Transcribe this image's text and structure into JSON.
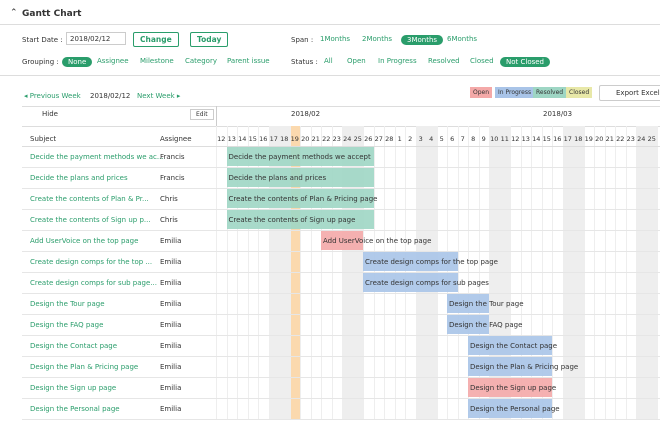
{
  "header": {
    "title": "Gantt Chart"
  },
  "filters": {
    "start_date_label": "Start Date :",
    "start_date": "2018/02/12",
    "change": "Change",
    "today": "Today",
    "span_label": "Span :",
    "span_options": [
      "1Months",
      "2Months",
      "3Months",
      "6Months"
    ],
    "grouping_label": "Grouping :",
    "grouping_options": [
      "None",
      "Assignee",
      "Milestone",
      "Category",
      "Parent issue"
    ],
    "status_label": "Status :",
    "status_options": [
      "All",
      "Open",
      "In Progress",
      "Resolved",
      "Closed",
      "Not Closed"
    ]
  },
  "nav": {
    "previous": "◂ Previous Week",
    "current": "2018/02/12",
    "next": "Next Week ▸"
  },
  "legend": [
    "Open",
    "In Progress",
    "Resolved",
    "Closed"
  ],
  "export": "Export Excel",
  "table": {
    "hide": "Hide",
    "edit": "Edit",
    "subject": "Subject",
    "assignee": "Assignee",
    "months": [
      "2018/02",
      "2018/03"
    ],
    "days": [
      "12",
      "13",
      "14",
      "15",
      "16",
      "17",
      "18",
      "19",
      "20",
      "21",
      "22",
      "23",
      "24",
      "25",
      "26",
      "27",
      "28",
      "1",
      "2",
      "3",
      "4",
      "5",
      "6",
      "7",
      "8",
      "9",
      "10",
      "11",
      "12",
      "13",
      "14",
      "15",
      "16",
      "17",
      "18",
      "19",
      "20",
      "21",
      "22",
      "23",
      "24",
      "25"
    ],
    "tasks": [
      {
        "subject": "Decide the payment methods we ac...",
        "assignee": "Francis",
        "bar": "Decide the payment methods we accept"
      },
      {
        "subject": "Decide the plans and prices",
        "assignee": "Francis",
        "bar": "Decide the plans and prices"
      },
      {
        "subject": "Create the contents of Plan & Pr...",
        "assignee": "Chris",
        "bar": "Create the contents of Plan & Pricing page"
      },
      {
        "subject": "Create the contents of Sign up p...",
        "assignee": "Chris",
        "bar": "Create the contents of Sign up page"
      },
      {
        "subject": "Add UserVoice on the top page",
        "assignee": "Emilia",
        "bar": "Add UserVoice on the top page"
      },
      {
        "subject": "Create design comps for the top ...",
        "assignee": "Emilia",
        "bar": "Create design comps for the top page"
      },
      {
        "subject": "Create design comps for sub page...",
        "assignee": "Emilia",
        "bar": "Create design comps for sub pages"
      },
      {
        "subject": "Design the Tour page",
        "assignee": "Emilia",
        "bar": "Design the Tour page"
      },
      {
        "subject": "Design the FAQ page",
        "assignee": "Emilia",
        "bar": "Design the FAQ page"
      },
      {
        "subject": "Design the Contact page",
        "assignee": "Emilia",
        "bar": "Design the Contact page"
      },
      {
        "subject": "Design the Plan & Pricing page",
        "assignee": "Emilia",
        "bar": "Design the Plan & Pricing page"
      },
      {
        "subject": "Design the Sign up page",
        "assignee": "Emilia",
        "bar": "Design the Sign up page"
      },
      {
        "subject": "Design the Personal page",
        "assignee": "Emilia",
        "bar": "Design the Personal page"
      }
    ]
  }
}
